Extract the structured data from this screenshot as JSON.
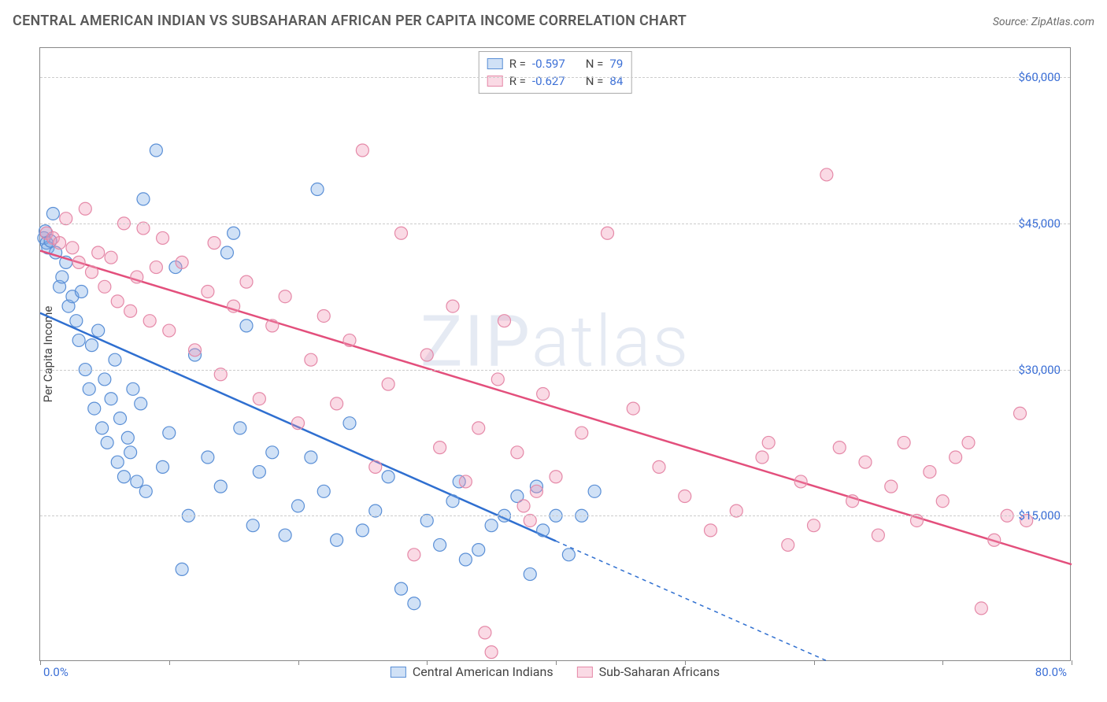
{
  "title": "CENTRAL AMERICAN INDIAN VS SUBSAHARAN AFRICAN PER CAPITA INCOME CORRELATION CHART",
  "source_label": "Source:",
  "source_name": "ZipAtlas.com",
  "watermark": "ZIPatlas",
  "y_axis": {
    "label": "Per Capita Income",
    "min": 0,
    "max": 63000,
    "ticks": [
      15000,
      30000,
      45000,
      60000
    ],
    "tick_labels": [
      "$15,000",
      "$30,000",
      "$45,000",
      "$60,000"
    ]
  },
  "x_axis": {
    "min": 0,
    "max": 80,
    "ticks": [
      0,
      10,
      20,
      30,
      40,
      50,
      60,
      70,
      80
    ],
    "start_label": "0.0%",
    "end_label": "80.0%"
  },
  "grid_color": "#cccccc",
  "series": [
    {
      "key": "cai",
      "name": "Central American Indians",
      "fill": "rgba(120,170,230,0.35)",
      "stroke": "#5a8fd6",
      "line_color": "#2f6fd0",
      "R_label": "R =",
      "R_value": "-0.597",
      "N_label": "N =",
      "N_value": "79",
      "trend": {
        "solid_from_x": 0,
        "solid_to_x": 40,
        "y_at_0": 35800,
        "y_at_80": -11000
      },
      "points": [
        [
          0.3,
          43500
        ],
        [
          0.4,
          44200
        ],
        [
          0.5,
          43000
        ],
        [
          0.6,
          42500
        ],
        [
          0.8,
          43200
        ],
        [
          1.0,
          46000
        ],
        [
          1.2,
          42000
        ],
        [
          1.5,
          38500
        ],
        [
          1.7,
          39500
        ],
        [
          2.0,
          41000
        ],
        [
          2.2,
          36500
        ],
        [
          2.5,
          37500
        ],
        [
          2.8,
          35000
        ],
        [
          3.0,
          33000
        ],
        [
          3.2,
          38000
        ],
        [
          3.5,
          30000
        ],
        [
          3.8,
          28000
        ],
        [
          4.0,
          32500
        ],
        [
          4.2,
          26000
        ],
        [
          4.5,
          34000
        ],
        [
          4.8,
          24000
        ],
        [
          5.0,
          29000
        ],
        [
          5.2,
          22500
        ],
        [
          5.5,
          27000
        ],
        [
          5.8,
          31000
        ],
        [
          6.0,
          20500
        ],
        [
          6.2,
          25000
        ],
        [
          6.5,
          19000
        ],
        [
          6.8,
          23000
        ],
        [
          7.0,
          21500
        ],
        [
          7.2,
          28000
        ],
        [
          7.5,
          18500
        ],
        [
          7.8,
          26500
        ],
        [
          8.0,
          47500
        ],
        [
          8.2,
          17500
        ],
        [
          9.0,
          52500
        ],
        [
          9.5,
          20000
        ],
        [
          10.0,
          23500
        ],
        [
          10.5,
          40500
        ],
        [
          11.0,
          9500
        ],
        [
          11.5,
          15000
        ],
        [
          12.0,
          31500
        ],
        [
          13.0,
          21000
        ],
        [
          14.0,
          18000
        ],
        [
          14.5,
          42000
        ],
        [
          15.0,
          44000
        ],
        [
          15.5,
          24000
        ],
        [
          16.0,
          34500
        ],
        [
          16.5,
          14000
        ],
        [
          17.0,
          19500
        ],
        [
          18.0,
          21500
        ],
        [
          19.0,
          13000
        ],
        [
          20.0,
          16000
        ],
        [
          21.0,
          21000
        ],
        [
          21.5,
          48500
        ],
        [
          22.0,
          17500
        ],
        [
          23.0,
          12500
        ],
        [
          24.0,
          24500
        ],
        [
          25.0,
          13500
        ],
        [
          26.0,
          15500
        ],
        [
          27.0,
          19000
        ],
        [
          28.0,
          7500
        ],
        [
          29.0,
          6000
        ],
        [
          30.0,
          14500
        ],
        [
          31.0,
          12000
        ],
        [
          32.0,
          16500
        ],
        [
          32.5,
          18500
        ],
        [
          33.0,
          10500
        ],
        [
          34.0,
          11500
        ],
        [
          35.0,
          14000
        ],
        [
          36.0,
          15000
        ],
        [
          37.0,
          17000
        ],
        [
          38.0,
          9000
        ],
        [
          38.5,
          18000
        ],
        [
          39.0,
          13500
        ],
        [
          40.0,
          15000
        ],
        [
          41.0,
          11000
        ],
        [
          42.0,
          15000
        ],
        [
          43.0,
          17500
        ]
      ]
    },
    {
      "key": "ssa",
      "name": "Sub-Saharan Africans",
      "fill": "rgba(240,150,180,0.35)",
      "stroke": "#e589a8",
      "line_color": "#e34f7c",
      "R_label": "R =",
      "R_value": "-0.627",
      "N_label": "N =",
      "N_value": "84",
      "trend": {
        "solid_from_x": 0,
        "solid_to_x": 80,
        "y_at_0": 42200,
        "y_at_80": 10000
      },
      "points": [
        [
          0.5,
          44000
        ],
        [
          1.0,
          43500
        ],
        [
          1.5,
          43000
        ],
        [
          2.0,
          45500
        ],
        [
          2.5,
          42500
        ],
        [
          3.0,
          41000
        ],
        [
          3.5,
          46500
        ],
        [
          4.0,
          40000
        ],
        [
          4.5,
          42000
        ],
        [
          5.0,
          38500
        ],
        [
          5.5,
          41500
        ],
        [
          6.0,
          37000
        ],
        [
          6.5,
          45000
        ],
        [
          7.0,
          36000
        ],
        [
          7.5,
          39500
        ],
        [
          8.0,
          44500
        ],
        [
          8.5,
          35000
        ],
        [
          9.0,
          40500
        ],
        [
          9.5,
          43500
        ],
        [
          10.0,
          34000
        ],
        [
          11.0,
          41000
        ],
        [
          12.0,
          32000
        ],
        [
          13.0,
          38000
        ],
        [
          13.5,
          43000
        ],
        [
          14.0,
          29500
        ],
        [
          15.0,
          36500
        ],
        [
          16.0,
          39000
        ],
        [
          17.0,
          27000
        ],
        [
          18.0,
          34500
        ],
        [
          19.0,
          37500
        ],
        [
          20.0,
          24500
        ],
        [
          21.0,
          31000
        ],
        [
          22.0,
          35500
        ],
        [
          23.0,
          26500
        ],
        [
          24.0,
          33000
        ],
        [
          25.0,
          52500
        ],
        [
          26.0,
          20000
        ],
        [
          27.0,
          28500
        ],
        [
          28.0,
          44000
        ],
        [
          29.0,
          11000
        ],
        [
          30.0,
          31500
        ],
        [
          31.0,
          22000
        ],
        [
          32.0,
          36500
        ],
        [
          33.0,
          18500
        ],
        [
          34.0,
          24000
        ],
        [
          34.5,
          3000
        ],
        [
          35.0,
          1000
        ],
        [
          35.5,
          29000
        ],
        [
          36.0,
          35000
        ],
        [
          37.0,
          21500
        ],
        [
          37.5,
          16000
        ],
        [
          38.0,
          14500
        ],
        [
          38.5,
          17500
        ],
        [
          39.0,
          27500
        ],
        [
          40.0,
          19000
        ],
        [
          42.0,
          23500
        ],
        [
          44.0,
          44000
        ],
        [
          46.0,
          26000
        ],
        [
          48.0,
          20000
        ],
        [
          50.0,
          17000
        ],
        [
          52.0,
          13500
        ],
        [
          54.0,
          15500
        ],
        [
          56.0,
          21000
        ],
        [
          56.5,
          22500
        ],
        [
          58.0,
          12000
        ],
        [
          59.0,
          18500
        ],
        [
          60.0,
          14000
        ],
        [
          61.0,
          50000
        ],
        [
          62.0,
          22000
        ],
        [
          63.0,
          16500
        ],
        [
          64.0,
          20500
        ],
        [
          65.0,
          13000
        ],
        [
          66.0,
          18000
        ],
        [
          67.0,
          22500
        ],
        [
          68.0,
          14500
        ],
        [
          69.0,
          19500
        ],
        [
          70.0,
          16500
        ],
        [
          71.0,
          21000
        ],
        [
          72.0,
          22500
        ],
        [
          73.0,
          5500
        ],
        [
          74.0,
          12500
        ],
        [
          75.0,
          15000
        ],
        [
          76.0,
          25500
        ],
        [
          76.5,
          14500
        ]
      ]
    }
  ]
}
